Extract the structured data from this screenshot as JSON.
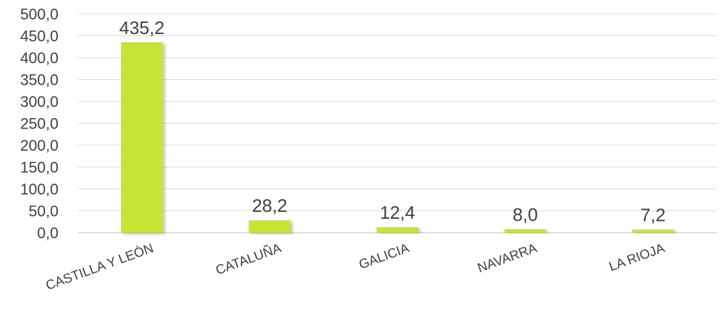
{
  "chart_data": {
    "type": "bar",
    "title": "",
    "xlabel": "",
    "ylabel": "",
    "categories": [
      "CASTILLA Y LEÓN",
      "CATALUÑA",
      "GALICIA",
      "NAVARRA",
      "LA RIOJA"
    ],
    "values": [
      435.2,
      28.2,
      12.4,
      8.0,
      7.2
    ],
    "data_labels": [
      "435,2",
      "28,2",
      "12,4",
      "8,0",
      "7,2"
    ],
    "ylim": [
      0,
      500
    ],
    "yticks": [
      0,
      50,
      100,
      150,
      200,
      250,
      300,
      350,
      400,
      450,
      500
    ],
    "ytick_labels": [
      "0,0",
      "50,0",
      "100,0",
      "150,0",
      "200,0",
      "250,0",
      "300,0",
      "350,0",
      "400,0",
      "450,0",
      "500,0"
    ],
    "grid": true,
    "legend": "none",
    "bar_color": "#c5e535"
  }
}
